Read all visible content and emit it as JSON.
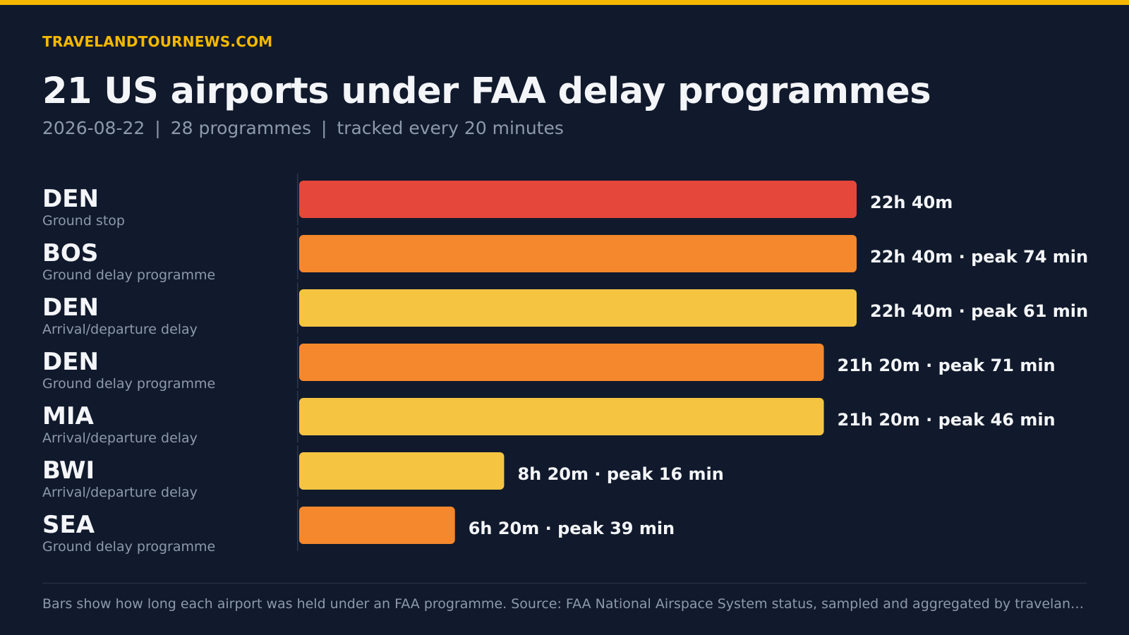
{
  "brand": "TRAVELANDTOURNEWS.COM",
  "title": "21 US airports under FAA delay programmes",
  "subtitle": {
    "date": "2026-08-22",
    "programmes": "28 programmes",
    "tracked": "tracked every 20 minutes",
    "separator": "|"
  },
  "footnote": "Bars show how long each airport was held under an FAA programme. Source: FAA National Airspace System status, sampled and aggregated by travelandtournews.com",
  "colors": {
    "accent": "#f5b800",
    "background": "#111a2c",
    "ground_stop": "#e5473b",
    "ground_delay_programme": "#f5882c",
    "arrival_departure_delay": "#f5c542"
  },
  "chart_data": {
    "type": "bar",
    "orientation": "horizontal",
    "title": "",
    "xlabel": "",
    "ylabel": "",
    "unit": "hours held",
    "xlim": [
      0,
      22.6667
    ],
    "grid": false,
    "rows": [
      {
        "code": "DEN",
        "category": "Ground stop",
        "color_key": "ground_stop",
        "hours": 22.6667,
        "duration_label": "22h 40m",
        "peak_label": ""
      },
      {
        "code": "BOS",
        "category": "Ground delay programme",
        "color_key": "ground_delay_programme",
        "hours": 22.6667,
        "duration_label": "22h 40m",
        "peak_label": "peak 74 min"
      },
      {
        "code": "DEN",
        "category": "Arrival/departure delay",
        "color_key": "arrival_departure_delay",
        "hours": 22.6667,
        "duration_label": "22h 40m",
        "peak_label": "peak 61 min"
      },
      {
        "code": "DEN",
        "category": "Ground delay programme",
        "color_key": "ground_delay_programme",
        "hours": 21.3333,
        "duration_label": "21h 20m",
        "peak_label": "peak 71 min"
      },
      {
        "code": "MIA",
        "category": "Arrival/departure delay",
        "color_key": "arrival_departure_delay",
        "hours": 21.3333,
        "duration_label": "21h 20m",
        "peak_label": "peak 46 min"
      },
      {
        "code": "BWI",
        "category": "Arrival/departure delay",
        "color_key": "arrival_departure_delay",
        "hours": 8.3333,
        "duration_label": "8h 20m",
        "peak_label": "peak 16 min"
      },
      {
        "code": "SEA",
        "category": "Ground delay programme",
        "color_key": "ground_delay_programme",
        "hours": 6.3333,
        "duration_label": "6h 20m",
        "peak_label": "peak 39 min"
      }
    ]
  }
}
